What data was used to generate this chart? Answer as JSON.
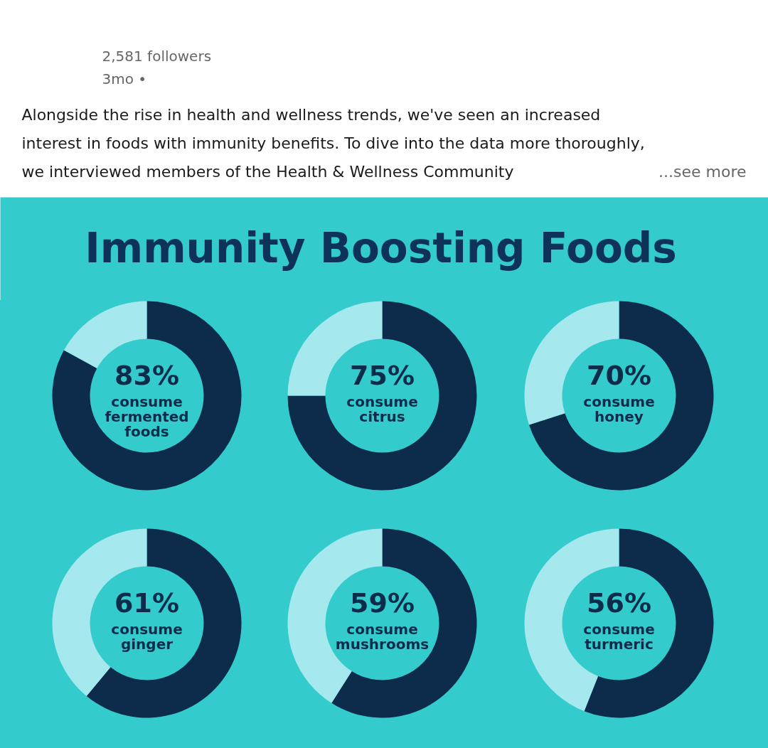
{
  "chart_data": [
    {
      "type": "other",
      "annotations": [
        "2,581 followers",
        "3mo •",
        "Alongside the rise in health and wellness trends, we've seen an increased interest in foods with immunity benefits. To dive into the data more thoroughly, we interviewed members of the Health & Wellness Community",
        "...see more"
      ]
    },
    {
      "type": "other",
      "title": "Immunity Boosting Foods"
    },
    {
      "type": "donut",
      "categories": [
        "consume fermented foods",
        null
      ],
      "values": [
        83,
        17
      ],
      "colors": [
        "#0d2b4a",
        "#a5e8ee"
      ],
      "value_labels": [
        "83%",
        null
      ]
    },
    {
      "type": "donut",
      "categories": [
        "consume citrus",
        null
      ],
      "values": [
        75,
        25
      ],
      "colors": [
        "#0d2b4a",
        "#a5e8ee"
      ],
      "value_labels": [
        "75%",
        null
      ]
    },
    {
      "type": "donut",
      "categories": [
        "consume honey",
        null
      ],
      "values": [
        70,
        30
      ],
      "colors": [
        "#0d2b4a",
        "#a5e8ee"
      ],
      "value_labels": [
        "70%",
        null
      ]
    },
    {
      "type": "donut",
      "categories": [
        "consume ginger",
        null
      ],
      "values": [
        61,
        39
      ],
      "colors": [
        "#0d2b4a",
        "#a5e8ee"
      ],
      "value_labels": [
        "61%",
        null
      ]
    },
    {
      "type": "donut",
      "categories": [
        "consume mushrooms",
        null
      ],
      "values": [
        59,
        41
      ],
      "colors": [
        "#0d2b4a",
        "#a5e8ee"
      ],
      "value_labels": [
        "59%",
        null
      ]
    },
    {
      "type": "donut",
      "categories": [
        "consume turmeric",
        null
      ],
      "values": [
        56,
        44
      ],
      "colors": [
        "#0d2b4a",
        "#a5e8ee"
      ],
      "value_labels": [
        "56%",
        null
      ]
    }
  ]
}
